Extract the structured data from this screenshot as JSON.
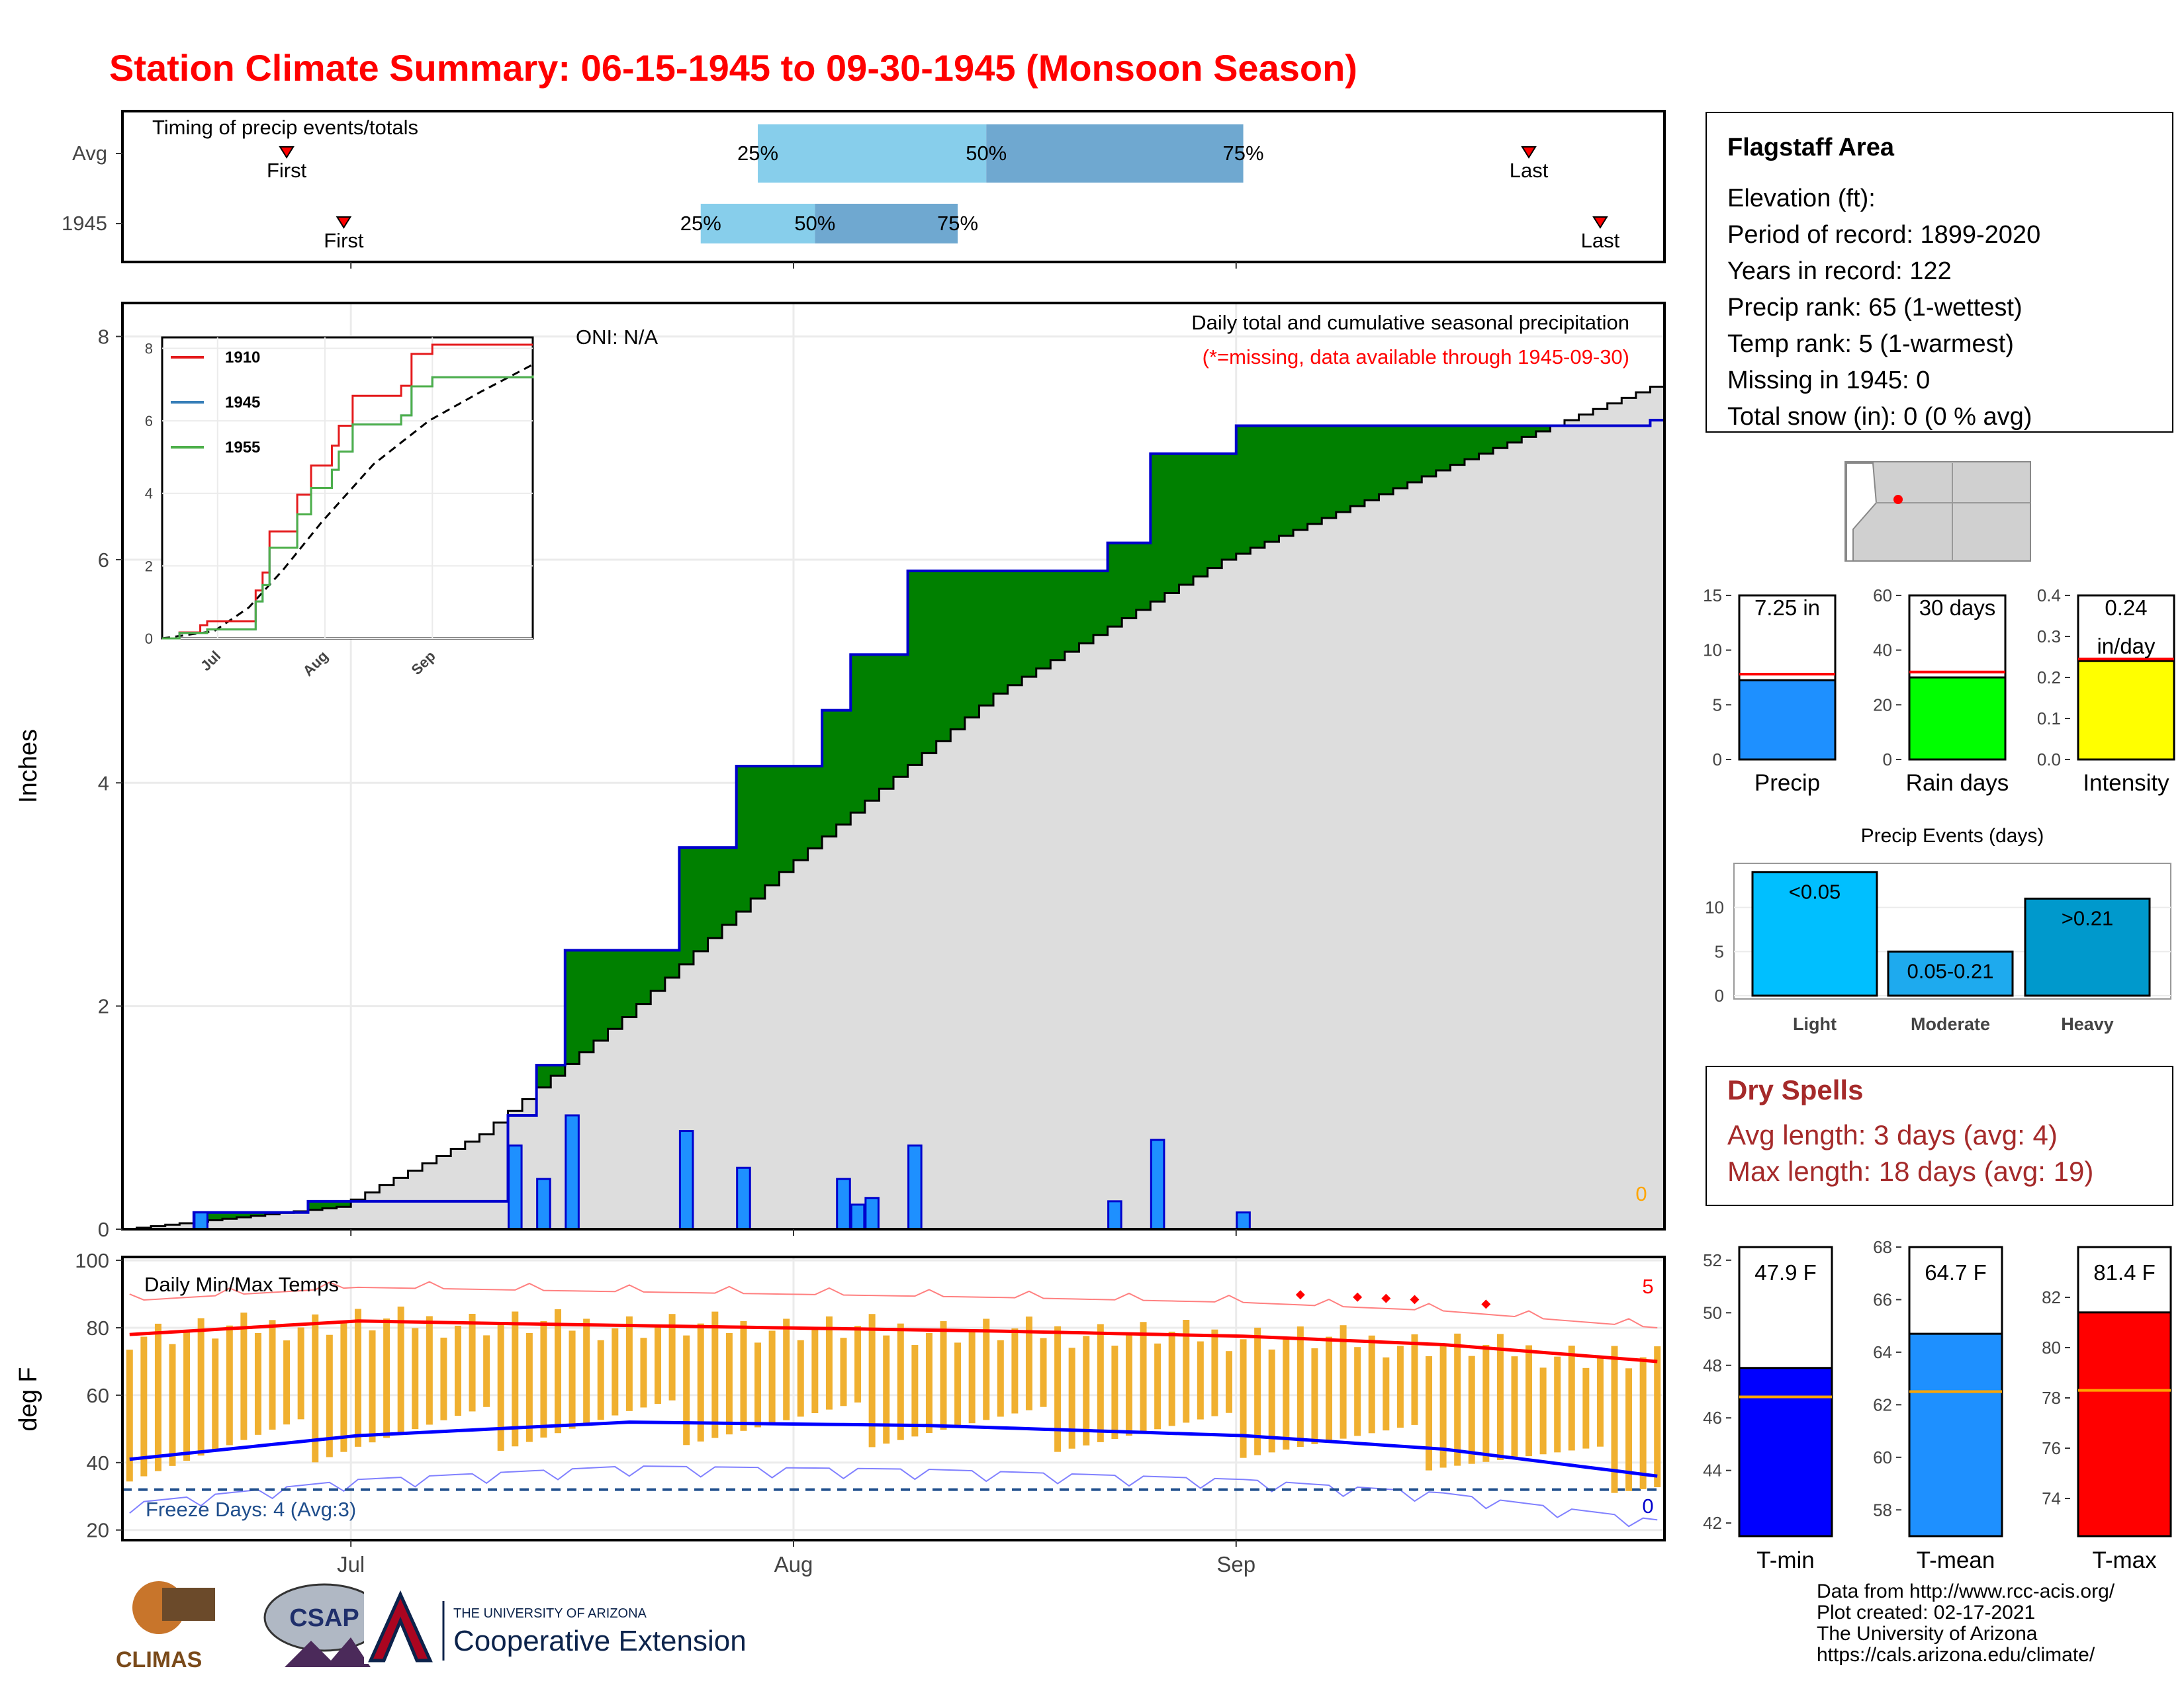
{
  "title": "Station Climate Summary: 06-15-1945 to 09-30-1945 (Monsoon Season)",
  "timing_panel": {
    "label": "Timing of precip events/totals",
    "rows": [
      {
        "name": "Avg",
        "first_day": 11,
        "p25_day": 44,
        "p50_day": 60,
        "p75_day": 78,
        "last_day": 98
      },
      {
        "name": "1945",
        "first_day": 15,
        "p25_day": 40,
        "p50_day": 48,
        "p75_day": 58,
        "last_day": 103
      }
    ],
    "labels": {
      "first": "First",
      "last": "Last",
      "p25": "25%",
      "p50": "50%",
      "p75": "75%"
    }
  },
  "main_panel": {
    "ylabel": "Inches",
    "title": "Daily total and cumulative seasonal precipitation",
    "subtitle": "(*=missing, data available through 1945-09-30)",
    "oni": "ONI: N/A",
    "missing_count": "0",
    "yticks": [
      "0",
      "2",
      "4",
      "6",
      "8"
    ],
    "colors": {
      "cum_avg_fill": "#dddddd",
      "above": "#008000",
      "below": "#7f4f00",
      "bars": "#1e90ff",
      "outline": "#0000cd"
    }
  },
  "inset": {
    "legend": [
      "1910",
      "1945",
      "1955"
    ],
    "colors": [
      "#e41a1c",
      "#377eb8",
      "#4daf4a"
    ],
    "yticks": [
      "0",
      "2",
      "4",
      "6",
      "8"
    ],
    "xticks": [
      "Jul",
      "Aug",
      "Sep"
    ]
  },
  "temp_panel": {
    "ylabel": "deg F",
    "label": "Daily Min/Max Temps",
    "freeze": "Freeze Days: 4 (Avg:3)",
    "hot_count": "5",
    "cold_count": "0",
    "yticks": [
      "20",
      "40",
      "60",
      "80",
      "100"
    ]
  },
  "x_axis": {
    "ticks": [
      "Jul",
      "Aug",
      "Sep"
    ]
  },
  "info_box": {
    "title": "Flagstaff Area",
    "lines": [
      "Elevation (ft):",
      "Period of record: 1899-2020",
      "Years in record: 122",
      "Precip rank: 65 (1-wettest)",
      "Temp rank: 5 (1-warmest)",
      "Missing in 1945: 0",
      "Total snow (in): 0 (0 % avg)"
    ]
  },
  "summary_bars": [
    {
      "label": "Precip",
      "value_text": "7.25 in",
      "value": 7.25,
      "avg": 7.8,
      "ymax": 15,
      "ticks": [
        "0",
        "5",
        "10",
        "15"
      ],
      "color": "#1e90ff"
    },
    {
      "label": "Rain days",
      "value_text": "30 days",
      "value": 30,
      "avg": 32,
      "ymax": 60,
      "ticks": [
        "0",
        "20",
        "40",
        "60"
      ],
      "color": "#00ff00"
    },
    {
      "label": "Intensity",
      "value_text": "0.24",
      "value_text2": "in/day",
      "value": 0.24,
      "avg": 0.245,
      "ymax": 0.4,
      "ticks": [
        "0.0",
        "0.1",
        "0.2",
        "0.3",
        "0.4"
      ],
      "color": "#ffff00"
    }
  ],
  "precip_events": {
    "title": "Precip Events (days)",
    "ticks": [
      "0",
      "5",
      "10"
    ],
    "bars": [
      {
        "label": "Light",
        "value": 14,
        "tag": "<0.05",
        "color": "#00bfff"
      },
      {
        "label": "Moderate",
        "value": 5,
        "tag": "0.05-0.21",
        "color": "#1eaaee"
      },
      {
        "label": "Heavy",
        "value": 11,
        "tag": ">0.21",
        "color": "#0099cc"
      }
    ]
  },
  "dry_spells": {
    "title": "Dry Spells",
    "avg_length": "Avg length: 3 days (avg: 4)",
    "max_length": "Max length: 18 days (avg: 19)"
  },
  "temp_bars": [
    {
      "label": "T-min",
      "value_text": "47.9 F",
      "value": 47.9,
      "avg": 46.8,
      "ymin": 41.5,
      "ymax": 52.5,
      "ticks": [
        "42",
        "44",
        "46",
        "48",
        "50",
        "52"
      ],
      "color": "#0000ff"
    },
    {
      "label": "T-mean",
      "value_text": "64.7 F",
      "value": 64.7,
      "avg": 62.5,
      "ymin": 57,
      "ymax": 68,
      "ticks": [
        "58",
        "60",
        "62",
        "64",
        "66",
        "68"
      ],
      "color": "#1e90ff"
    },
    {
      "label": "T-max",
      "value_text": "81.4 F",
      "value": 81.4,
      "avg": 78.3,
      "ymin": 72.5,
      "ymax": 84,
      "ticks": [
        "74",
        "76",
        "78",
        "80",
        "82"
      ],
      "color": "#ff0000"
    }
  ],
  "credits": [
    "Data from http://www.rcc-acis.org/",
    "Plot created: 02-17-2021",
    "The University of Arizona",
    "https://cals.arizona.edu/climate/"
  ],
  "logos": {
    "climas": "CLIMAS",
    "csap": "CSAP",
    "ua_top": "THE UNIVERSITY OF ARIZONA",
    "ua_bottom": "Cooperative Extension"
  },
  "chart_data": {
    "type": "bar",
    "x_start": "1945-06-15",
    "x_end": "1945-09-30",
    "daily_precip": [
      {
        "date": "1945-06-20",
        "value": 0.15
      },
      {
        "date": "1945-07-12",
        "value": 0.75
      },
      {
        "date": "1945-07-14",
        "value": 0.45
      },
      {
        "date": "1945-07-16",
        "value": 1.02
      },
      {
        "date": "1945-07-24",
        "value": 0.88
      },
      {
        "date": "1945-07-28",
        "value": 0.55
      },
      {
        "date": "1945-08-04",
        "value": 0.45
      },
      {
        "date": "1945-08-05",
        "value": 0.22
      },
      {
        "date": "1945-08-06",
        "value": 0.28
      },
      {
        "date": "1945-08-09",
        "value": 0.75
      },
      {
        "date": "1945-08-23",
        "value": 0.25
      },
      {
        "date": "1945-08-26",
        "value": 0.8
      },
      {
        "date": "1945-09-01",
        "value": 0.15
      }
    ],
    "cumulative_1945": [
      {
        "date": "1945-06-15",
        "value": 0
      },
      {
        "date": "1945-06-20",
        "value": 0.15
      },
      {
        "date": "1945-06-28",
        "value": 0.25
      },
      {
        "date": "1945-07-12",
        "value": 1.02
      },
      {
        "date": "1945-07-14",
        "value": 1.47
      },
      {
        "date": "1945-07-16",
        "value": 2.5
      },
      {
        "date": "1945-07-24",
        "value": 3.42
      },
      {
        "date": "1945-07-28",
        "value": 4.15
      },
      {
        "date": "1945-08-03",
        "value": 4.65
      },
      {
        "date": "1945-08-05",
        "value": 5.15
      },
      {
        "date": "1945-08-09",
        "value": 5.9
      },
      {
        "date": "1945-08-23",
        "value": 6.15
      },
      {
        "date": "1945-08-26",
        "value": 6.95
      },
      {
        "date": "1945-09-01",
        "value": 7.2
      },
      {
        "date": "1945-09-30",
        "value": 7.25
      }
    ],
    "cumulative_avg": [
      {
        "date": "1945-06-15",
        "value": 0
      },
      {
        "date": "1945-06-30",
        "value": 0.2
      },
      {
        "date": "1945-07-10",
        "value": 0.85
      },
      {
        "date": "1945-07-20",
        "value": 1.9
      },
      {
        "date": "1945-07-31",
        "value": 3.2
      },
      {
        "date": "1945-08-15",
        "value": 4.8
      },
      {
        "date": "1945-08-31",
        "value": 6.0
      },
      {
        "date": "1945-09-15",
        "value": 6.8
      },
      {
        "date": "1945-09-30",
        "value": 7.55
      }
    ],
    "tmax_avg": [
      {
        "date": "1945-06-15",
        "value": 78
      },
      {
        "date": "1945-07-01",
        "value": 82
      },
      {
        "date": "1945-07-15",
        "value": 81
      },
      {
        "date": "1945-08-15",
        "value": 79
      },
      {
        "date": "1945-09-01",
        "value": 77.5
      },
      {
        "date": "1945-09-15",
        "value": 75
      },
      {
        "date": "1945-09-30",
        "value": 70
      }
    ],
    "tmin_avg": [
      {
        "date": "1945-06-15",
        "value": 41
      },
      {
        "date": "1945-07-01",
        "value": 48
      },
      {
        "date": "1945-07-20",
        "value": 52
      },
      {
        "date": "1945-08-10",
        "value": 51
      },
      {
        "date": "1945-09-01",
        "value": 48
      },
      {
        "date": "1945-09-15",
        "value": 44
      },
      {
        "date": "1945-09-30",
        "value": 36
      }
    ],
    "ylim_precip": [
      0,
      8.3
    ],
    "ylim_temp": [
      17,
      101
    ]
  }
}
